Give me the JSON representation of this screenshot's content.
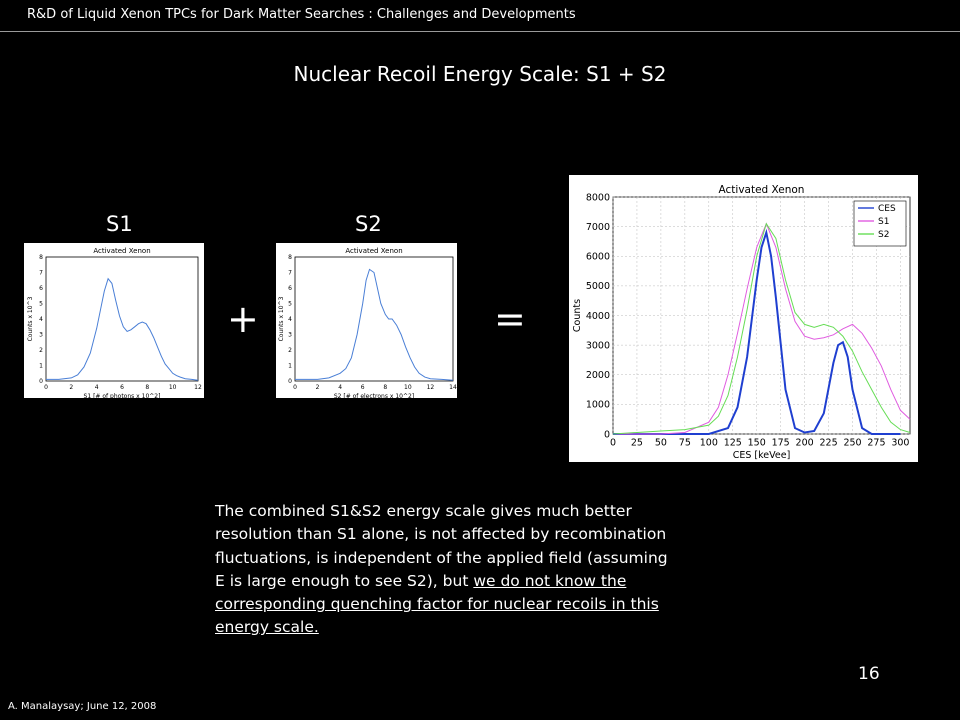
{
  "header": {
    "text": "R&D of Liquid Xenon TPCs for Dark Matter Searches : Challenges and Developments"
  },
  "title": "Nuclear Recoil Energy Scale: S1 + S2",
  "labels": {
    "s1": "S1",
    "s2": "S2",
    "plus": "+",
    "equals": "="
  },
  "description": {
    "plain": "The combined S1&S2 energy scale gives much better resolution than S1 alone, is not affected by recombination fluctuations, is independent of the applied field (assuming E is large enough to see S2), but ",
    "underlined": "we do not know the corresponding quenching factor for nuclear recoils in this energy scale."
  },
  "page_number": "16",
  "footer": "A. Manalaysay; June 12, 2008",
  "colors": {
    "ces": "#1f3fd0",
    "s1": "#e05ce0",
    "s2": "#66dd55",
    "small_line": "#4a7fd6"
  },
  "chart_data": [
    {
      "type": "line",
      "title": "Activated Xenon",
      "xlabel": "S1 [# of photons x 10^2]",
      "ylabel": "Counts x 10^3",
      "xlim": [
        0,
        12
      ],
      "ylim": [
        0,
        8
      ],
      "xticks": [
        0,
        2,
        4,
        6,
        8,
        10,
        12
      ],
      "yticks": [
        0,
        1,
        2,
        3,
        4,
        5,
        6,
        7,
        8
      ],
      "series": [
        {
          "x": [
            0,
            1,
            2,
            2.5,
            3,
            3.5,
            4,
            4.3,
            4.6,
            4.9,
            5.2,
            5.5,
            5.8,
            6.1,
            6.4,
            6.7,
            7,
            7.3,
            7.6,
            7.9,
            8.2,
            8.5,
            8.8,
            9.1,
            9.4,
            9.7,
            10,
            10.3,
            10.6,
            11,
            11.5,
            12
          ],
          "y": [
            0.1,
            0.1,
            0.2,
            0.4,
            0.9,
            1.8,
            3.4,
            4.6,
            5.8,
            6.6,
            6.3,
            5.2,
            4.2,
            3.5,
            3.2,
            3.3,
            3.5,
            3.7,
            3.8,
            3.7,
            3.3,
            2.8,
            2.2,
            1.6,
            1.1,
            0.8,
            0.5,
            0.35,
            0.25,
            0.15,
            0.1,
            0.05
          ]
        }
      ]
    },
    {
      "type": "line",
      "title": "Activated Xenon",
      "xlabel": "S2 [# of electrons x 10^2]",
      "ylabel": "Counts x 10^3",
      "xlim": [
        0,
        14
      ],
      "ylim": [
        0,
        8
      ],
      "xticks": [
        0,
        2,
        4,
        6,
        8,
        10,
        12,
        14
      ],
      "yticks": [
        0,
        1,
        2,
        3,
        4,
        5,
        6,
        7,
        8
      ],
      "series": [
        {
          "x": [
            0,
            1,
            2,
            3,
            4,
            4.5,
            5,
            5.5,
            6,
            6.3,
            6.6,
            7,
            7.3,
            7.6,
            8,
            8.3,
            8.6,
            9,
            9.4,
            9.8,
            10.2,
            10.6,
            11,
            11.5,
            12,
            13,
            14
          ],
          "y": [
            0.1,
            0.1,
            0.1,
            0.2,
            0.5,
            0.8,
            1.5,
            3,
            5,
            6.5,
            7.2,
            7,
            6,
            5,
            4.3,
            4,
            4,
            3.6,
            3,
            2.2,
            1.5,
            0.9,
            0.5,
            0.25,
            0.15,
            0.1,
            0.05
          ]
        }
      ]
    },
    {
      "type": "line",
      "title": "Activated Xenon",
      "xlabel": "CES [keVee]",
      "ylabel": "Counts",
      "xlim": [
        0,
        310
      ],
      "ylim": [
        0,
        8000
      ],
      "xticks": [
        0,
        25,
        50,
        75,
        100,
        125,
        150,
        175,
        200,
        225,
        250,
        275,
        300
      ],
      "yticks": [
        0,
        1000,
        2000,
        3000,
        4000,
        5000,
        6000,
        7000,
        8000
      ],
      "legend": "top-right",
      "series": [
        {
          "name": "CES",
          "x": [
            0,
            100,
            120,
            130,
            140,
            150,
            155,
            160,
            165,
            170,
            180,
            190,
            200,
            210,
            220,
            230,
            235,
            240,
            245,
            250,
            260,
            270,
            300
          ],
          "y": [
            0,
            0,
            200,
            900,
            2600,
            5200,
            6300,
            6800,
            6000,
            4600,
            1500,
            200,
            50,
            100,
            700,
            2400,
            3000,
            3100,
            2600,
            1500,
            200,
            0,
            0
          ]
        },
        {
          "name": "S1",
          "x": [
            0,
            50,
            75,
            100,
            110,
            120,
            130,
            140,
            150,
            160,
            170,
            180,
            190,
            200,
            210,
            220,
            230,
            240,
            250,
            260,
            270,
            280,
            290,
            300,
            310
          ],
          "y": [
            0,
            0,
            50,
            400,
            900,
            2000,
            3400,
            4900,
            6300,
            7100,
            6300,
            4900,
            3800,
            3300,
            3200,
            3250,
            3350,
            3550,
            3700,
            3400,
            2900,
            2300,
            1500,
            800,
            500
          ]
        },
        {
          "name": "S2",
          "x": [
            0,
            50,
            75,
            100,
            110,
            120,
            130,
            140,
            150,
            160,
            170,
            180,
            190,
            200,
            210,
            220,
            230,
            240,
            250,
            260,
            270,
            280,
            290,
            300,
            310
          ],
          "y": [
            0,
            100,
            150,
            300,
            600,
            1300,
            2600,
            4200,
            6000,
            7100,
            6600,
            5200,
            4100,
            3700,
            3600,
            3700,
            3600,
            3300,
            2800,
            2100,
            1500,
            900,
            400,
            150,
            50
          ]
        }
      ]
    }
  ]
}
